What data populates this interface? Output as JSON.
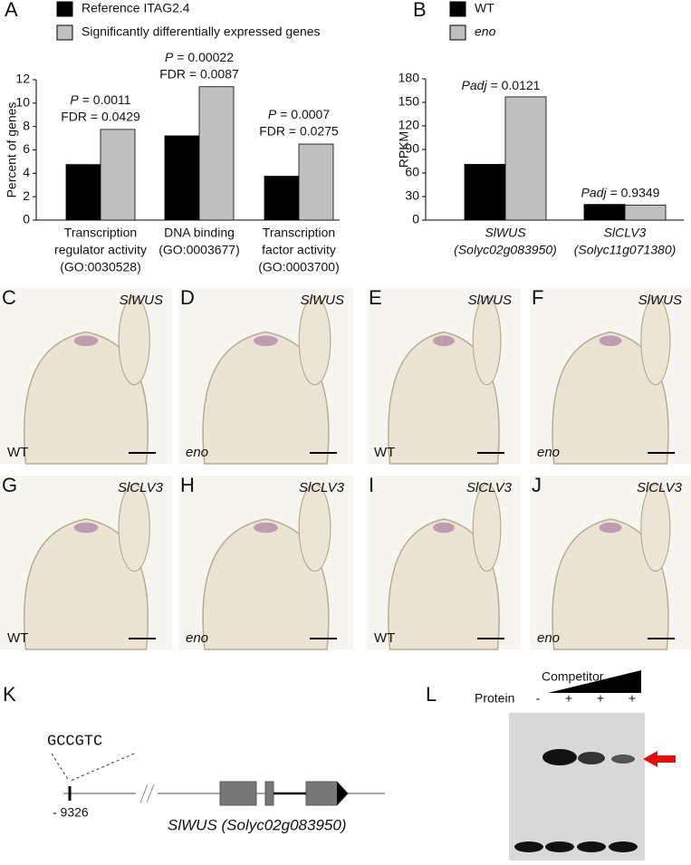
{
  "chart_data": [
    {
      "type": "bar",
      "panel": "A",
      "ylabel": "Percent of genes",
      "categories": [
        [
          "Transcription",
          "regulator activity",
          "(GO:0030528)"
        ],
        [
          "DNA binding",
          "(GO:0003677)"
        ],
        [
          "Transcription",
          "factor activity",
          "(GO:0003700)"
        ]
      ],
      "series": [
        {
          "name": "Reference ITAG2.4",
          "color": "#000000",
          "values": [
            4.75,
            7.2,
            3.75
          ]
        },
        {
          "name": "Significantly differentially expressed genes",
          "color": "#c0c0c0",
          "values": [
            7.75,
            11.4,
            6.5
          ]
        }
      ],
      "ylim": [
        0,
        12
      ],
      "yticks": [
        0,
        2,
        4,
        6,
        8,
        10,
        12
      ],
      "annotations": [
        {
          "stat": "P",
          "text": "= 0.0011",
          "fdr": "FDR = 0.0429"
        },
        {
          "stat": "P",
          "text": "= 0.00022",
          "fdr": "FDR = 0.0087"
        },
        {
          "stat": "P",
          "text": "= 0.0007",
          "fdr": "FDR = 0.0275"
        }
      ]
    },
    {
      "type": "bar",
      "panel": "B",
      "ylabel": "RPKM",
      "categories": [
        [
          "SlWUS",
          "(Solyc02g083950)"
        ],
        [
          "SlCLV3",
          "(Solyc11g071380)"
        ]
      ],
      "series": [
        {
          "name": "WT",
          "color": "#000000",
          "values": [
            71,
            20
          ]
        },
        {
          "name": "eno",
          "color": "#c0c0c0",
          "values": [
            157,
            19
          ]
        }
      ],
      "ylim": [
        0,
        180
      ],
      "yticks": [
        0,
        30,
        60,
        90,
        120,
        150,
        180
      ],
      "annotations": [
        {
          "stat": "Padj",
          "text": "= 0.0121"
        },
        {
          "stat": "Padj",
          "text": "= 0.9349"
        }
      ]
    }
  ],
  "micrographs": [
    {
      "panel": "C",
      "gene": "SlWUS",
      "genotype": "WT"
    },
    {
      "panel": "D",
      "gene": "SlWUS",
      "genotype": "eno"
    },
    {
      "panel": "E",
      "gene": "SlWUS",
      "genotype": "WT"
    },
    {
      "panel": "F",
      "gene": "SlWUS",
      "genotype": "eno"
    },
    {
      "panel": "G",
      "gene": "SlCLV3",
      "genotype": "WT"
    },
    {
      "panel": "H",
      "gene": "SlCLV3",
      "genotype": "eno"
    },
    {
      "panel": "I",
      "gene": "SlCLV3",
      "genotype": "WT"
    },
    {
      "panel": "J",
      "gene": "SlCLV3",
      "genotype": "eno"
    }
  ],
  "promoter": {
    "panel": "K",
    "motif": "GCCGTC",
    "position": "- 9326",
    "gene_label": "SlWUS (Solyc02g083950)"
  },
  "emsa": {
    "panel": "L",
    "competitor": "Competitor",
    "protein": "Protein",
    "lanes": [
      "-",
      "+",
      "+",
      "+"
    ]
  }
}
